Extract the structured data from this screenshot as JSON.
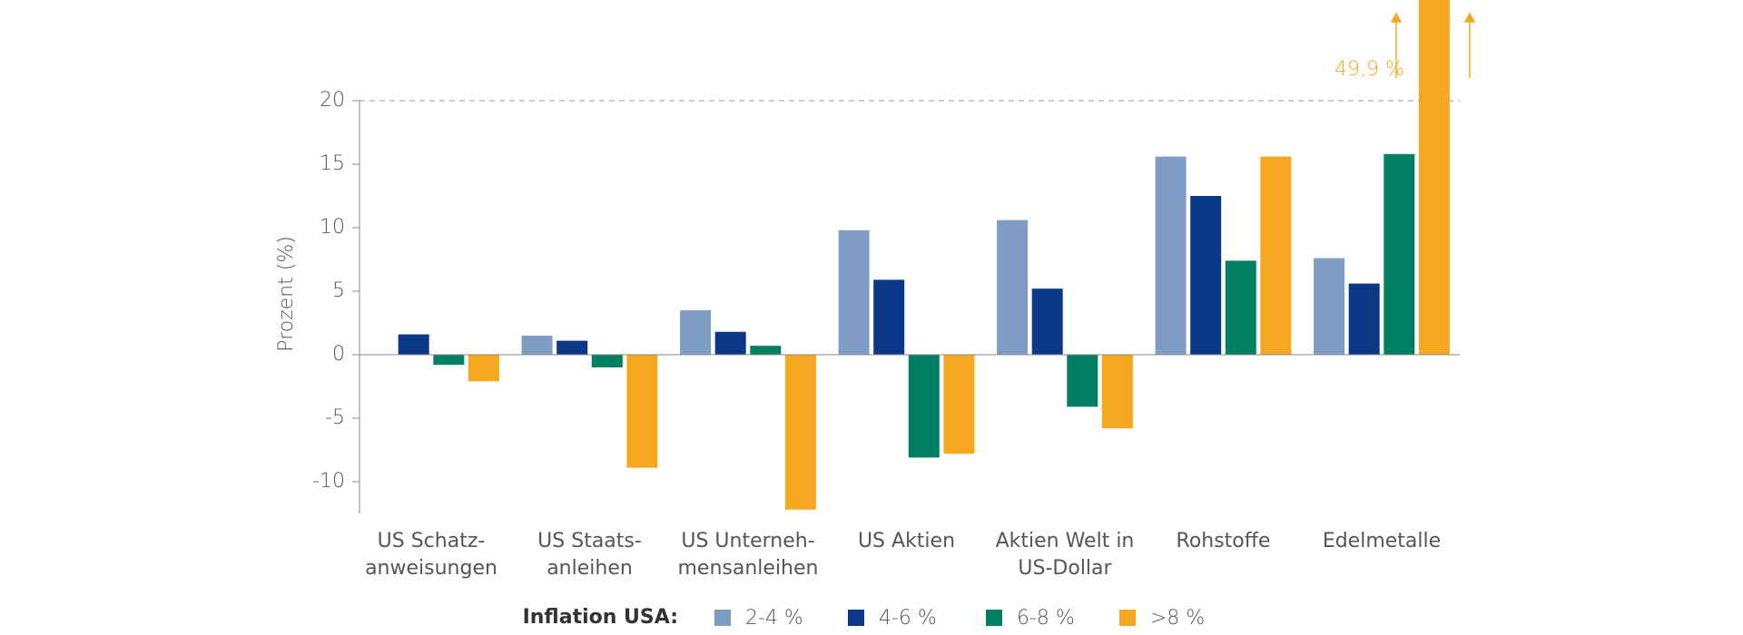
{
  "chart_data": {
    "type": "bar",
    "y_label": "Prozent (%)",
    "categories": [
      "US Schatz-\nanweisungen",
      "US Staats-\nanleihen",
      "US Unterneh-\nmensanleihen",
      "US Aktien",
      "Aktien Welt in\nUS-Dollar",
      "Rohstoffe",
      "Edelmetalle"
    ],
    "legend_title": "Inflation USA:",
    "series": [
      {
        "name": "2-4 %",
        "color": "#7f9dc4",
        "values": [
          null,
          1.5,
          3.5,
          9.8,
          10.6,
          15.6,
          7.6
        ]
      },
      {
        "name": "4-6 %",
        "color": "#0a3887",
        "values": [
          1.6,
          1.1,
          1.8,
          5.9,
          5.2,
          12.5,
          5.6
        ]
      },
      {
        "name": "6-8 %",
        "color": "#008062",
        "values": [
          -0.8,
          -1.0,
          0.7,
          -8.1,
          -4.1,
          7.4,
          15.8
        ]
      },
      {
        "name": ">8 %",
        "color": "#f5a81f",
        "values": [
          -2.1,
          -8.9,
          -12.2,
          -7.8,
          -5.8,
          15.6,
          49.9
        ],
        "value_labels": [
          null,
          null,
          null,
          null,
          null,
          null,
          "49,9 %"
        ]
      }
    ],
    "ylim": [
      -12.5,
      20
    ],
    "yticks": [
      -10,
      -5,
      0,
      5,
      10,
      15,
      20
    ]
  }
}
